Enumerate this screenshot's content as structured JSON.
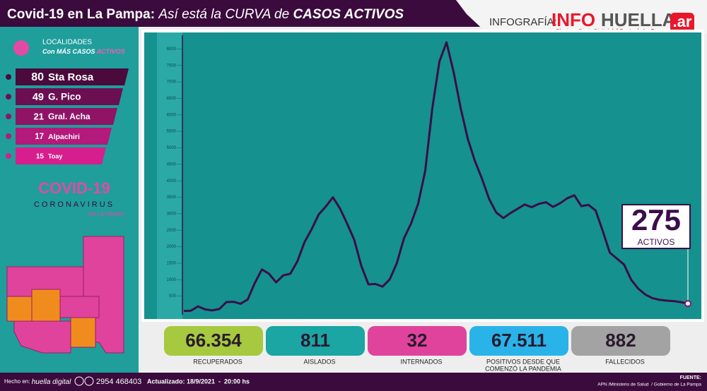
{
  "header": {
    "title_parts": [
      "Covid-19 en La Pampa:",
      "Así está la CURVA de",
      "CASOS ACTIVOS"
    ],
    "brand_label": "INFOGRAFÍA:",
    "brand_info": "INFO",
    "brand_huella": "HUELLA",
    "brand_ar": ".ar",
    "brand_tagline": "El primer Diario Digital",
    "brand_tagline_2": "del Oeste de La Pampa"
  },
  "localidades": {
    "title": "LOCALIDADES",
    "subtitle": "Con MÁS CASOS",
    "subtitle_2": "ACTIVOS",
    "rows": [
      {
        "count": "80",
        "name": "Sta Rosa"
      },
      {
        "count": "49",
        "name": "G. Pico"
      },
      {
        "count": "21",
        "name": "Gral. Acha"
      },
      {
        "count": "17",
        "name": "Alpachiri"
      },
      {
        "count": "15",
        "name": "Toay"
      }
    ]
  },
  "covid_logo": {
    "line1": "COVID-19",
    "line2": "CORONAVIRUS",
    "line3": "EN LA PAMPA"
  },
  "chart_data": {
    "type": "line",
    "color": "#3b0d4a",
    "values": [
      50,
      60,
      190,
      100,
      70,
      110,
      320,
      330,
      270,
      400,
      900,
      1310,
      1180,
      920,
      1130,
      1180,
      1560,
      2140,
      2530,
      2980,
      3220,
      3500,
      3160,
      2700,
      2210,
      1420,
      860,
      870,
      790,
      1010,
      1500,
      2250,
      2700,
      3300,
      4300,
      6200,
      7620,
      8200,
      7300,
      6200,
      5270,
      4600,
      4060,
      3450,
      3040,
      2870,
      3020,
      3150,
      3280,
      3200,
      3300,
      3350,
      3210,
      3320,
      3470,
      3560,
      3230,
      3270,
      3100,
      2480,
      1820,
      1640,
      1460,
      1000,
      730,
      550,
      440,
      390,
      365,
      350,
      320,
      275
    ],
    "ylim": [
      0,
      8500
    ],
    "yticks": [
      500,
      1000,
      1500,
      2000,
      2500,
      3000,
      3500,
      4000,
      4500,
      5000,
      5500,
      6000,
      6500,
      7000,
      7500,
      8000
    ],
    "callout_label": "ACTIVOS"
  },
  "stats": [
    {
      "value": "66.354",
      "label": [
        "RECUPERADOS"
      ],
      "color": "#a6c93f"
    },
    {
      "value": "811",
      "label": [
        "AISLADOS"
      ],
      "color": "#1ba5a3"
    },
    {
      "value": "32",
      "label": [
        "INTERNADOS"
      ],
      "color": "#e0439c"
    },
    {
      "value": "67.511",
      "label": [
        "POSITIVOS DESDE QUE",
        "COMENZÓ LA PANDEMIA"
      ],
      "color": "#29b3e8"
    },
    {
      "value": "882",
      "label": [
        "FALLECIDOS"
      ],
      "color": "#a3a3a3"
    }
  ],
  "footer": {
    "made_in": "Hecho en:",
    "made_brand": "huella digital",
    "phone": "2954 468403",
    "updated": "Actualizado: 18/9/2021  -  20:00 hs",
    "source_title": "FUENTE:",
    "source": "APN /Ministerio de Salud  / Gobierno de La Pampa"
  }
}
